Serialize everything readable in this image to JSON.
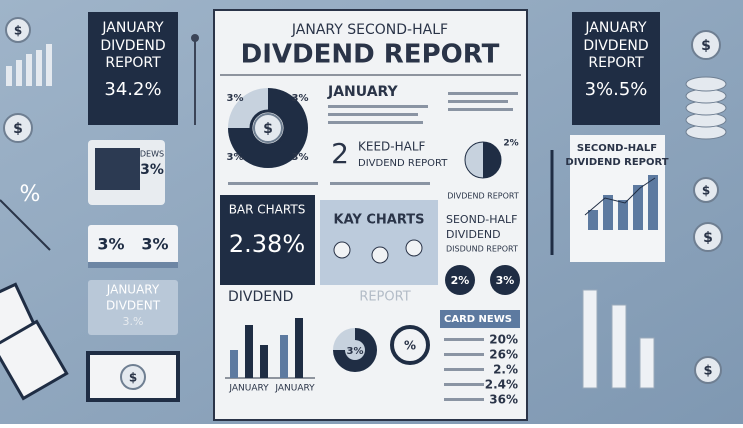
{
  "left": {
    "card1": {
      "title": [
        "JANUARY",
        "DIVDEND",
        "REPORT"
      ],
      "value": "34.2%"
    },
    "symbol": "%",
    "card2": {
      "label": "DEWS",
      "value": "3%"
    },
    "card3": {
      "values": [
        "3%",
        "3%"
      ]
    },
    "card4": {
      "title": [
        "JANUARY",
        "DIVDENT"
      ],
      "value": "3.%"
    }
  },
  "poster": {
    "title": [
      "JANARY SECOND-HALF",
      "DIVDEND REPORT"
    ],
    "pie_labels": [
      "3%",
      "3%",
      "3%",
      "3%"
    ],
    "section": "JANUARY",
    "number": "2",
    "subtitle": [
      "KEED-HALF",
      "DIVDEND REPORT"
    ],
    "pie2": {
      "label": "2%",
      "caption": "DIVDEND REPORT"
    },
    "bar_charts": {
      "title": "BAR CHARTS",
      "value": "2.38%"
    },
    "kay_charts": "KAY CHARTS",
    "second_half": [
      "SEOND-HALF",
      "DIVIDEND",
      "DISDUND REPORT"
    ],
    "badges": [
      "2%",
      "3%"
    ],
    "dividend": "DIVDEND",
    "report": "REPORT",
    "bar_labels": [
      "JANUARY",
      "JANUARY"
    ],
    "donut_labels": [
      "3%",
      "%"
    ],
    "card_news": {
      "title": "CARD NEWS",
      "values": [
        "20%",
        "26%",
        "2.%",
        "2.4%",
        "36%"
      ]
    }
  },
  "right": {
    "card1": {
      "title": [
        "JANUARY",
        "DIVDEND",
        "REPORT"
      ],
      "value": "3%.5%"
    },
    "paper": [
      "SECOND-HALF",
      "DIVIDEND REPORT"
    ]
  },
  "currency": "$"
}
